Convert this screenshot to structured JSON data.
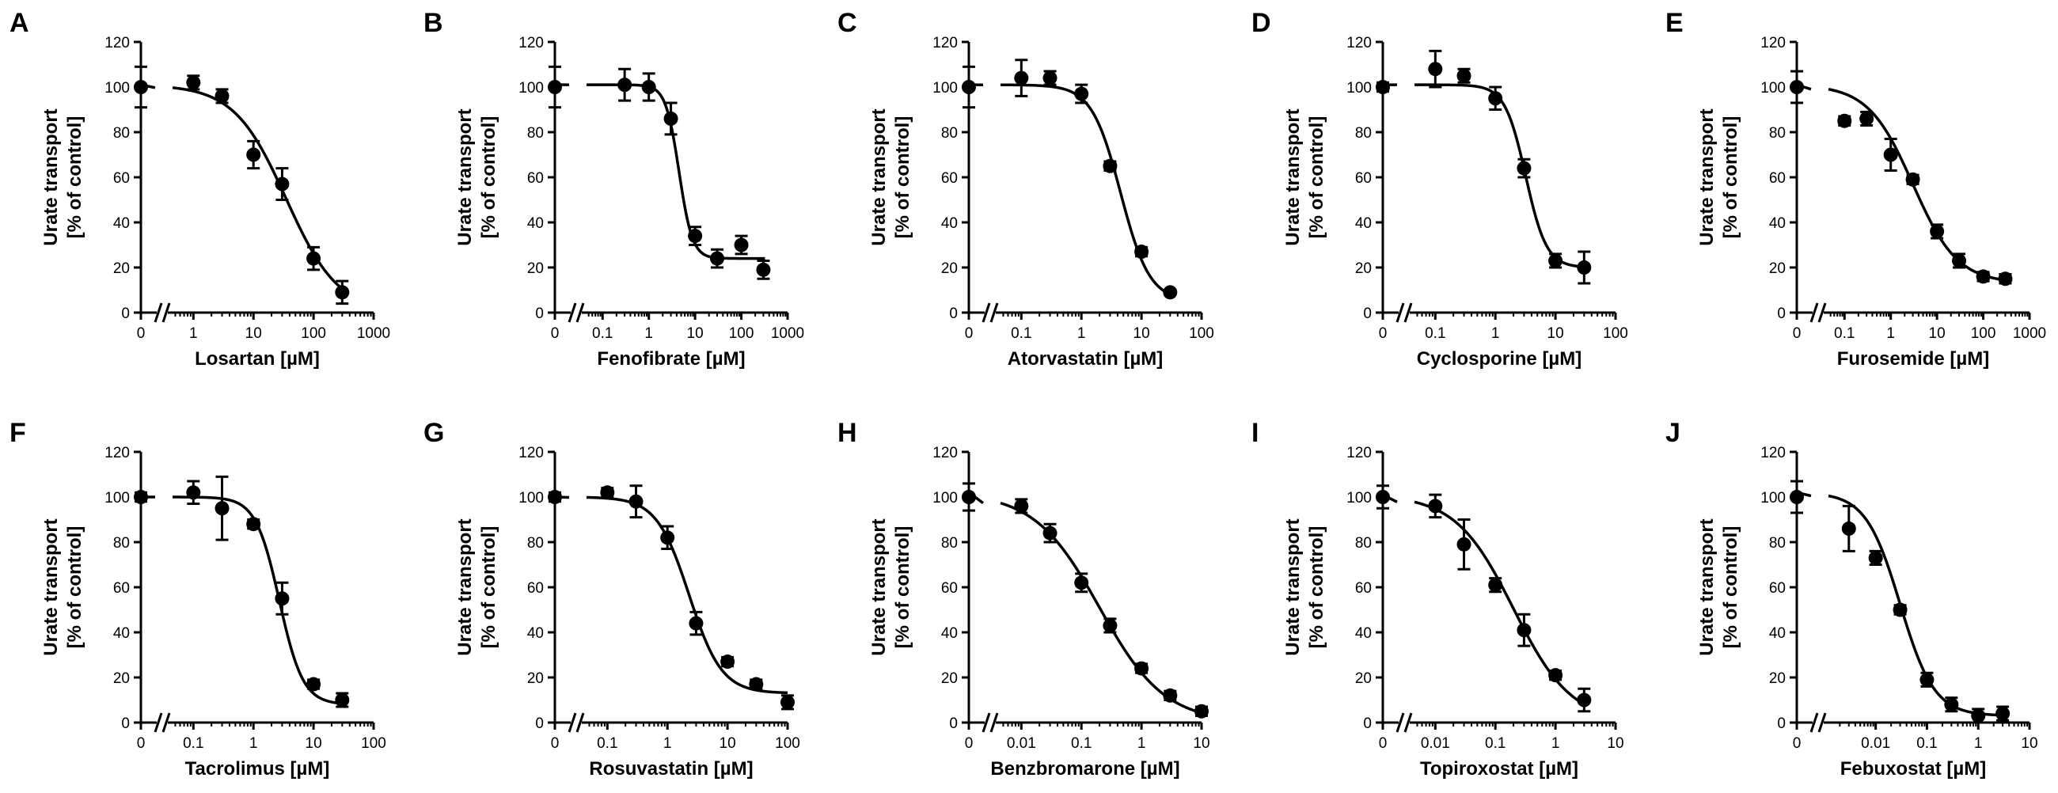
{
  "chart_data": [
    {
      "type": "scatter",
      "panel": "A",
      "xlabel": "Losartan [µM]",
      "ylabel": [
        "Urate transport",
        "[% of control]"
      ],
      "ylim": [
        0,
        120
      ],
      "yticks": [
        0,
        20,
        40,
        60,
        80,
        100,
        120
      ],
      "xscale": "log",
      "xlim": [
        0.45,
        1000
      ],
      "xticks": [
        1,
        10,
        100,
        1000
      ],
      "xtick_labels": [
        "1",
        "10",
        "100",
        "1000"
      ],
      "zero_label": "0",
      "points": [
        {
          "x": 0,
          "y": 100,
          "err": 9
        },
        {
          "x": 1,
          "y": 102,
          "err": 3
        },
        {
          "x": 3,
          "y": 96,
          "err": 3
        },
        {
          "x": 10,
          "y": 70,
          "err": 6
        },
        {
          "x": 30,
          "y": 57,
          "err": 7
        },
        {
          "x": 100,
          "y": 24,
          "err": 5
        },
        {
          "x": 300,
          "y": 9,
          "err": 5
        }
      ],
      "curve": {
        "top": 101,
        "bottom": 0,
        "ec50": 35,
        "hill": 1.0
      }
    },
    {
      "type": "scatter",
      "panel": "B",
      "xlabel": "Fenofibrate [µM]",
      "ylabel": [
        "Urate transport",
        "[% of control]"
      ],
      "ylim": [
        0,
        120
      ],
      "yticks": [
        0,
        20,
        40,
        60,
        80,
        100,
        120
      ],
      "xscale": "log",
      "xlim": [
        0.045,
        1000
      ],
      "xticks": [
        0.1,
        1,
        10,
        100,
        1000
      ],
      "xtick_labels": [
        "0.1",
        "1",
        "10",
        "100",
        "1000"
      ],
      "zero_label": "0",
      "points": [
        {
          "x": 0,
          "y": 100,
          "err": 9
        },
        {
          "x": 0.3,
          "y": 101,
          "err": 7
        },
        {
          "x": 1,
          "y": 100,
          "err": 6
        },
        {
          "x": 3,
          "y": 86,
          "err": 7
        },
        {
          "x": 10,
          "y": 34,
          "err": 4
        },
        {
          "x": 30,
          "y": 24,
          "err": 4
        },
        {
          "x": 100,
          "y": 30,
          "err": 4
        },
        {
          "x": 300,
          "y": 19,
          "err": 4
        }
      ],
      "curve": {
        "top": 101,
        "bottom": 24,
        "ec50": 4.5,
        "hill": 3.0
      }
    },
    {
      "type": "scatter",
      "panel": "C",
      "xlabel": "Atorvastatin [µM]",
      "ylabel": [
        "Urate transport",
        "[% of control]"
      ],
      "ylim": [
        0,
        120
      ],
      "yticks": [
        0,
        20,
        40,
        60,
        80,
        100,
        120
      ],
      "xscale": "log",
      "xlim": [
        0.045,
        100
      ],
      "xticks": [
        0.1,
        1,
        10,
        100
      ],
      "xtick_labels": [
        "0.1",
        "1",
        "10",
        "100"
      ],
      "zero_label": "0",
      "points": [
        {
          "x": 0,
          "y": 100,
          "err": 9
        },
        {
          "x": 0.1,
          "y": 104,
          "err": 8
        },
        {
          "x": 0.3,
          "y": 104,
          "err": 3
        },
        {
          "x": 1,
          "y": 97,
          "err": 4
        },
        {
          "x": 3,
          "y": 65,
          "err": 2
        },
        {
          "x": 10,
          "y": 27,
          "err": 2
        },
        {
          "x": 30,
          "y": 9,
          "err": 1
        }
      ],
      "curve": {
        "top": 101,
        "bottom": 5,
        "ec50": 4.5,
        "hill": 1.8
      }
    },
    {
      "type": "scatter",
      "panel": "D",
      "xlabel": "Cyclosporine [µM]",
      "ylabel": [
        "Urate transport",
        "[% of control]"
      ],
      "ylim": [
        0,
        120
      ],
      "yticks": [
        0,
        20,
        40,
        60,
        80,
        100,
        120
      ],
      "xscale": "log",
      "xlim": [
        0.045,
        100
      ],
      "xticks": [
        0.1,
        1,
        10,
        100
      ],
      "xtick_labels": [
        "0.1",
        "1",
        "10",
        "100"
      ],
      "zero_label": "0",
      "points": [
        {
          "x": 0,
          "y": 100,
          "err": 2
        },
        {
          "x": 0.1,
          "y": 108,
          "err": 8
        },
        {
          "x": 0.3,
          "y": 105,
          "err": 3
        },
        {
          "x": 1,
          "y": 95,
          "err": 5
        },
        {
          "x": 3,
          "y": 64,
          "err": 4
        },
        {
          "x": 10,
          "y": 23,
          "err": 3
        },
        {
          "x": 30,
          "y": 20,
          "err": 7
        }
      ],
      "curve": {
        "top": 101,
        "bottom": 20,
        "ec50": 3.2,
        "hill": 2.5
      }
    },
    {
      "type": "scatter",
      "panel": "E",
      "xlabel": "Furosemide [µM]",
      "ylabel": [
        "Urate transport",
        "[% of control]"
      ],
      "ylim": [
        0,
        120
      ],
      "yticks": [
        0,
        20,
        40,
        60,
        80,
        100,
        120
      ],
      "xscale": "log",
      "xlim": [
        0.045,
        1000
      ],
      "xticks": [
        0.1,
        1,
        10,
        100,
        1000
      ],
      "xtick_labels": [
        "0.1",
        "1",
        "10",
        "100",
        "1000"
      ],
      "zero_label": "0",
      "points": [
        {
          "x": 0,
          "y": 100,
          "err": 7
        },
        {
          "x": 0.1,
          "y": 85,
          "err": 2
        },
        {
          "x": 0.3,
          "y": 86,
          "err": 3
        },
        {
          "x": 1,
          "y": 70,
          "err": 7
        },
        {
          "x": 3,
          "y": 59,
          "err": 2
        },
        {
          "x": 10,
          "y": 36,
          "err": 3
        },
        {
          "x": 30,
          "y": 23,
          "err": 3
        },
        {
          "x": 100,
          "y": 16,
          "err": 2
        },
        {
          "x": 300,
          "y": 15,
          "err": 2
        }
      ],
      "curve": {
        "top": 101,
        "bottom": 13,
        "ec50": 3,
        "hill": 0.9
      }
    },
    {
      "type": "scatter",
      "panel": "F",
      "xlabel": "Tacrolimus [µM]",
      "ylabel": [
        "Urate transport",
        "[% of control]"
      ],
      "ylim": [
        0,
        120
      ],
      "yticks": [
        0,
        20,
        40,
        60,
        80,
        100,
        120
      ],
      "xscale": "log",
      "xlim": [
        0.045,
        100
      ],
      "xticks": [
        0.1,
        1,
        10,
        100
      ],
      "xtick_labels": [
        "0.1",
        "1",
        "10",
        "100"
      ],
      "zero_label": "0",
      "points": [
        {
          "x": 0,
          "y": 100,
          "err": 2
        },
        {
          "x": 0.1,
          "y": 102,
          "err": 5
        },
        {
          "x": 0.3,
          "y": 95,
          "err": 14
        },
        {
          "x": 1,
          "y": 88,
          "err": 2
        },
        {
          "x": 3,
          "y": 55,
          "err": 7
        },
        {
          "x": 10,
          "y": 17,
          "err": 2
        },
        {
          "x": 30,
          "y": 10,
          "err": 3
        }
      ],
      "curve": {
        "top": 100,
        "bottom": 8,
        "ec50": 2.7,
        "hill": 2.2
      }
    },
    {
      "type": "scatter",
      "panel": "G",
      "xlabel": "Rosuvastatin [µM]",
      "ylabel": [
        "Urate transport",
        "[% of control]"
      ],
      "ylim": [
        0,
        120
      ],
      "yticks": [
        0,
        20,
        40,
        60,
        80,
        100,
        120
      ],
      "xscale": "log",
      "xlim": [
        0.045,
        100
      ],
      "xticks": [
        0.1,
        1,
        10,
        100
      ],
      "xtick_labels": [
        "0.1",
        "1",
        "10",
        "100"
      ],
      "zero_label": "0",
      "points": [
        {
          "x": 0,
          "y": 100,
          "err": 2
        },
        {
          "x": 0.1,
          "y": 102,
          "err": 2
        },
        {
          "x": 0.3,
          "y": 98,
          "err": 7
        },
        {
          "x": 1,
          "y": 82,
          "err": 5
        },
        {
          "x": 3,
          "y": 44,
          "err": 5
        },
        {
          "x": 10,
          "y": 27,
          "err": 2
        },
        {
          "x": 30,
          "y": 17,
          "err": 2
        },
        {
          "x": 100,
          "y": 9,
          "err": 3
        }
      ],
      "curve": {
        "top": 100,
        "bottom": 13,
        "ec50": 2.3,
        "hill": 1.6
      }
    },
    {
      "type": "scatter",
      "panel": "H",
      "xlabel": "Benzbromarone [µM]",
      "ylabel": [
        "Urate transport",
        "[% of control]"
      ],
      "ylim": [
        0,
        120
      ],
      "yticks": [
        0,
        20,
        40,
        60,
        80,
        100,
        120
      ],
      "xscale": "log",
      "xlim": [
        0.0045,
        10
      ],
      "xticks": [
        0.01,
        0.1,
        1,
        10
      ],
      "xtick_labels": [
        "0.01",
        "0.1",
        "1",
        "10"
      ],
      "zero_label": "0",
      "points": [
        {
          "x": 0,
          "y": 100,
          "err": 6
        },
        {
          "x": 0.01,
          "y": 96,
          "err": 3
        },
        {
          "x": 0.03,
          "y": 84,
          "err": 4
        },
        {
          "x": 0.1,
          "y": 62,
          "err": 4
        },
        {
          "x": 0.3,
          "y": 43,
          "err": 3
        },
        {
          "x": 1,
          "y": 24,
          "err": 2
        },
        {
          "x": 3,
          "y": 12,
          "err": 2
        },
        {
          "x": 10,
          "y": 5,
          "err": 2
        }
      ],
      "curve": {
        "top": 102,
        "bottom": 0,
        "ec50": 0.2,
        "hill": 0.8
      }
    },
    {
      "type": "scatter",
      "panel": "I",
      "xlabel": "Topiroxostat [µM]",
      "ylabel": [
        "Urate transport",
        "[% of control]"
      ],
      "ylim": [
        0,
        120
      ],
      "yticks": [
        0,
        20,
        40,
        60,
        80,
        100,
        120
      ],
      "xscale": "log",
      "xlim": [
        0.0045,
        10
      ],
      "xticks": [
        0.01,
        0.1,
        1,
        10
      ],
      "xtick_labels": [
        "0.01",
        "0.1",
        "1",
        "10"
      ],
      "zero_label": "0",
      "points": [
        {
          "x": 0,
          "y": 100,
          "err": 5
        },
        {
          "x": 0.01,
          "y": 96,
          "err": 5
        },
        {
          "x": 0.03,
          "y": 79,
          "err": 11
        },
        {
          "x": 0.1,
          "y": 61,
          "err": 3
        },
        {
          "x": 0.3,
          "y": 41,
          "err": 7
        },
        {
          "x": 1,
          "y": 21,
          "err": 2
        },
        {
          "x": 3,
          "y": 10,
          "err": 5
        }
      ],
      "curve": {
        "top": 101,
        "bottom": 0,
        "ec50": 0.2,
        "hill": 0.9
      }
    },
    {
      "type": "scatter",
      "panel": "J",
      "xlabel": "Febuxostat [µM]",
      "ylabel": [
        "Urate transport",
        "[% of control]"
      ],
      "ylim": [
        0,
        120
      ],
      "yticks": [
        0,
        20,
        40,
        60,
        80,
        100,
        120
      ],
      "xscale": "log",
      "xlim": [
        0.0012,
        10
      ],
      "xticks": [
        0.01,
        0.1,
        1,
        10
      ],
      "xtick_labels": [
        "0.01",
        "0.1",
        "1",
        "10"
      ],
      "zero_label": "0",
      "points": [
        {
          "x": 0,
          "y": 100,
          "err": 7
        },
        {
          "x": 0.003,
          "y": 86,
          "err": 10
        },
        {
          "x": 0.01,
          "y": 73,
          "err": 3
        },
        {
          "x": 0.03,
          "y": 50,
          "err": 2
        },
        {
          "x": 0.1,
          "y": 19,
          "err": 3
        },
        {
          "x": 0.3,
          "y": 8,
          "err": 3
        },
        {
          "x": 1,
          "y": 3,
          "err": 3
        },
        {
          "x": 3,
          "y": 4,
          "err": 3
        }
      ],
      "curve": {
        "top": 102,
        "bottom": 3,
        "ec50": 0.03,
        "hill": 1.3
      }
    }
  ]
}
